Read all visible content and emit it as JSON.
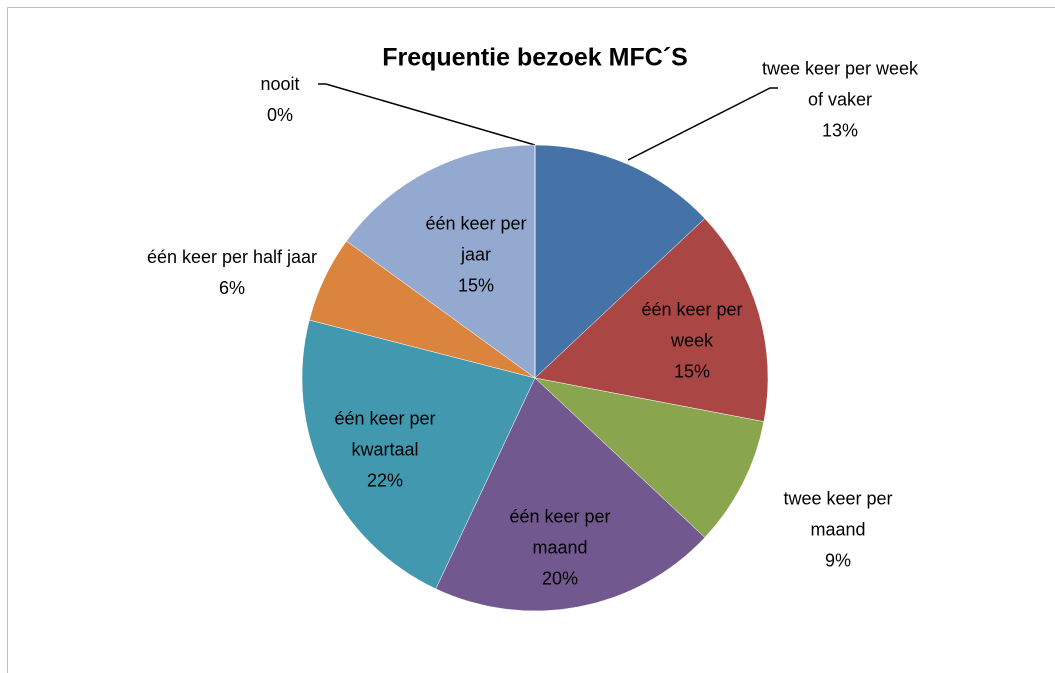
{
  "chart_data": {
    "type": "pie",
    "title": "Frequentie bezoek MFC´S",
    "categories": [
      "twee keer per week of vaker",
      "één keer per week",
      "twee keer per maand",
      "één keer per maand",
      "één keer per kwartaal",
      "één keer per half jaar",
      "één keer per jaar",
      "nooit"
    ],
    "values": [
      13,
      15,
      9,
      20,
      22,
      6,
      15,
      0
    ],
    "value_labels": [
      "13%",
      "15%",
      "9%",
      "20%",
      "22%",
      "6%",
      "15%",
      "0%"
    ],
    "colors": [
      "#4572a7",
      "#aa4643",
      "#89a54e",
      "#71588f",
      "#4198af",
      "#db843d",
      "#93a9cf",
      "#b9cde5"
    ]
  }
}
